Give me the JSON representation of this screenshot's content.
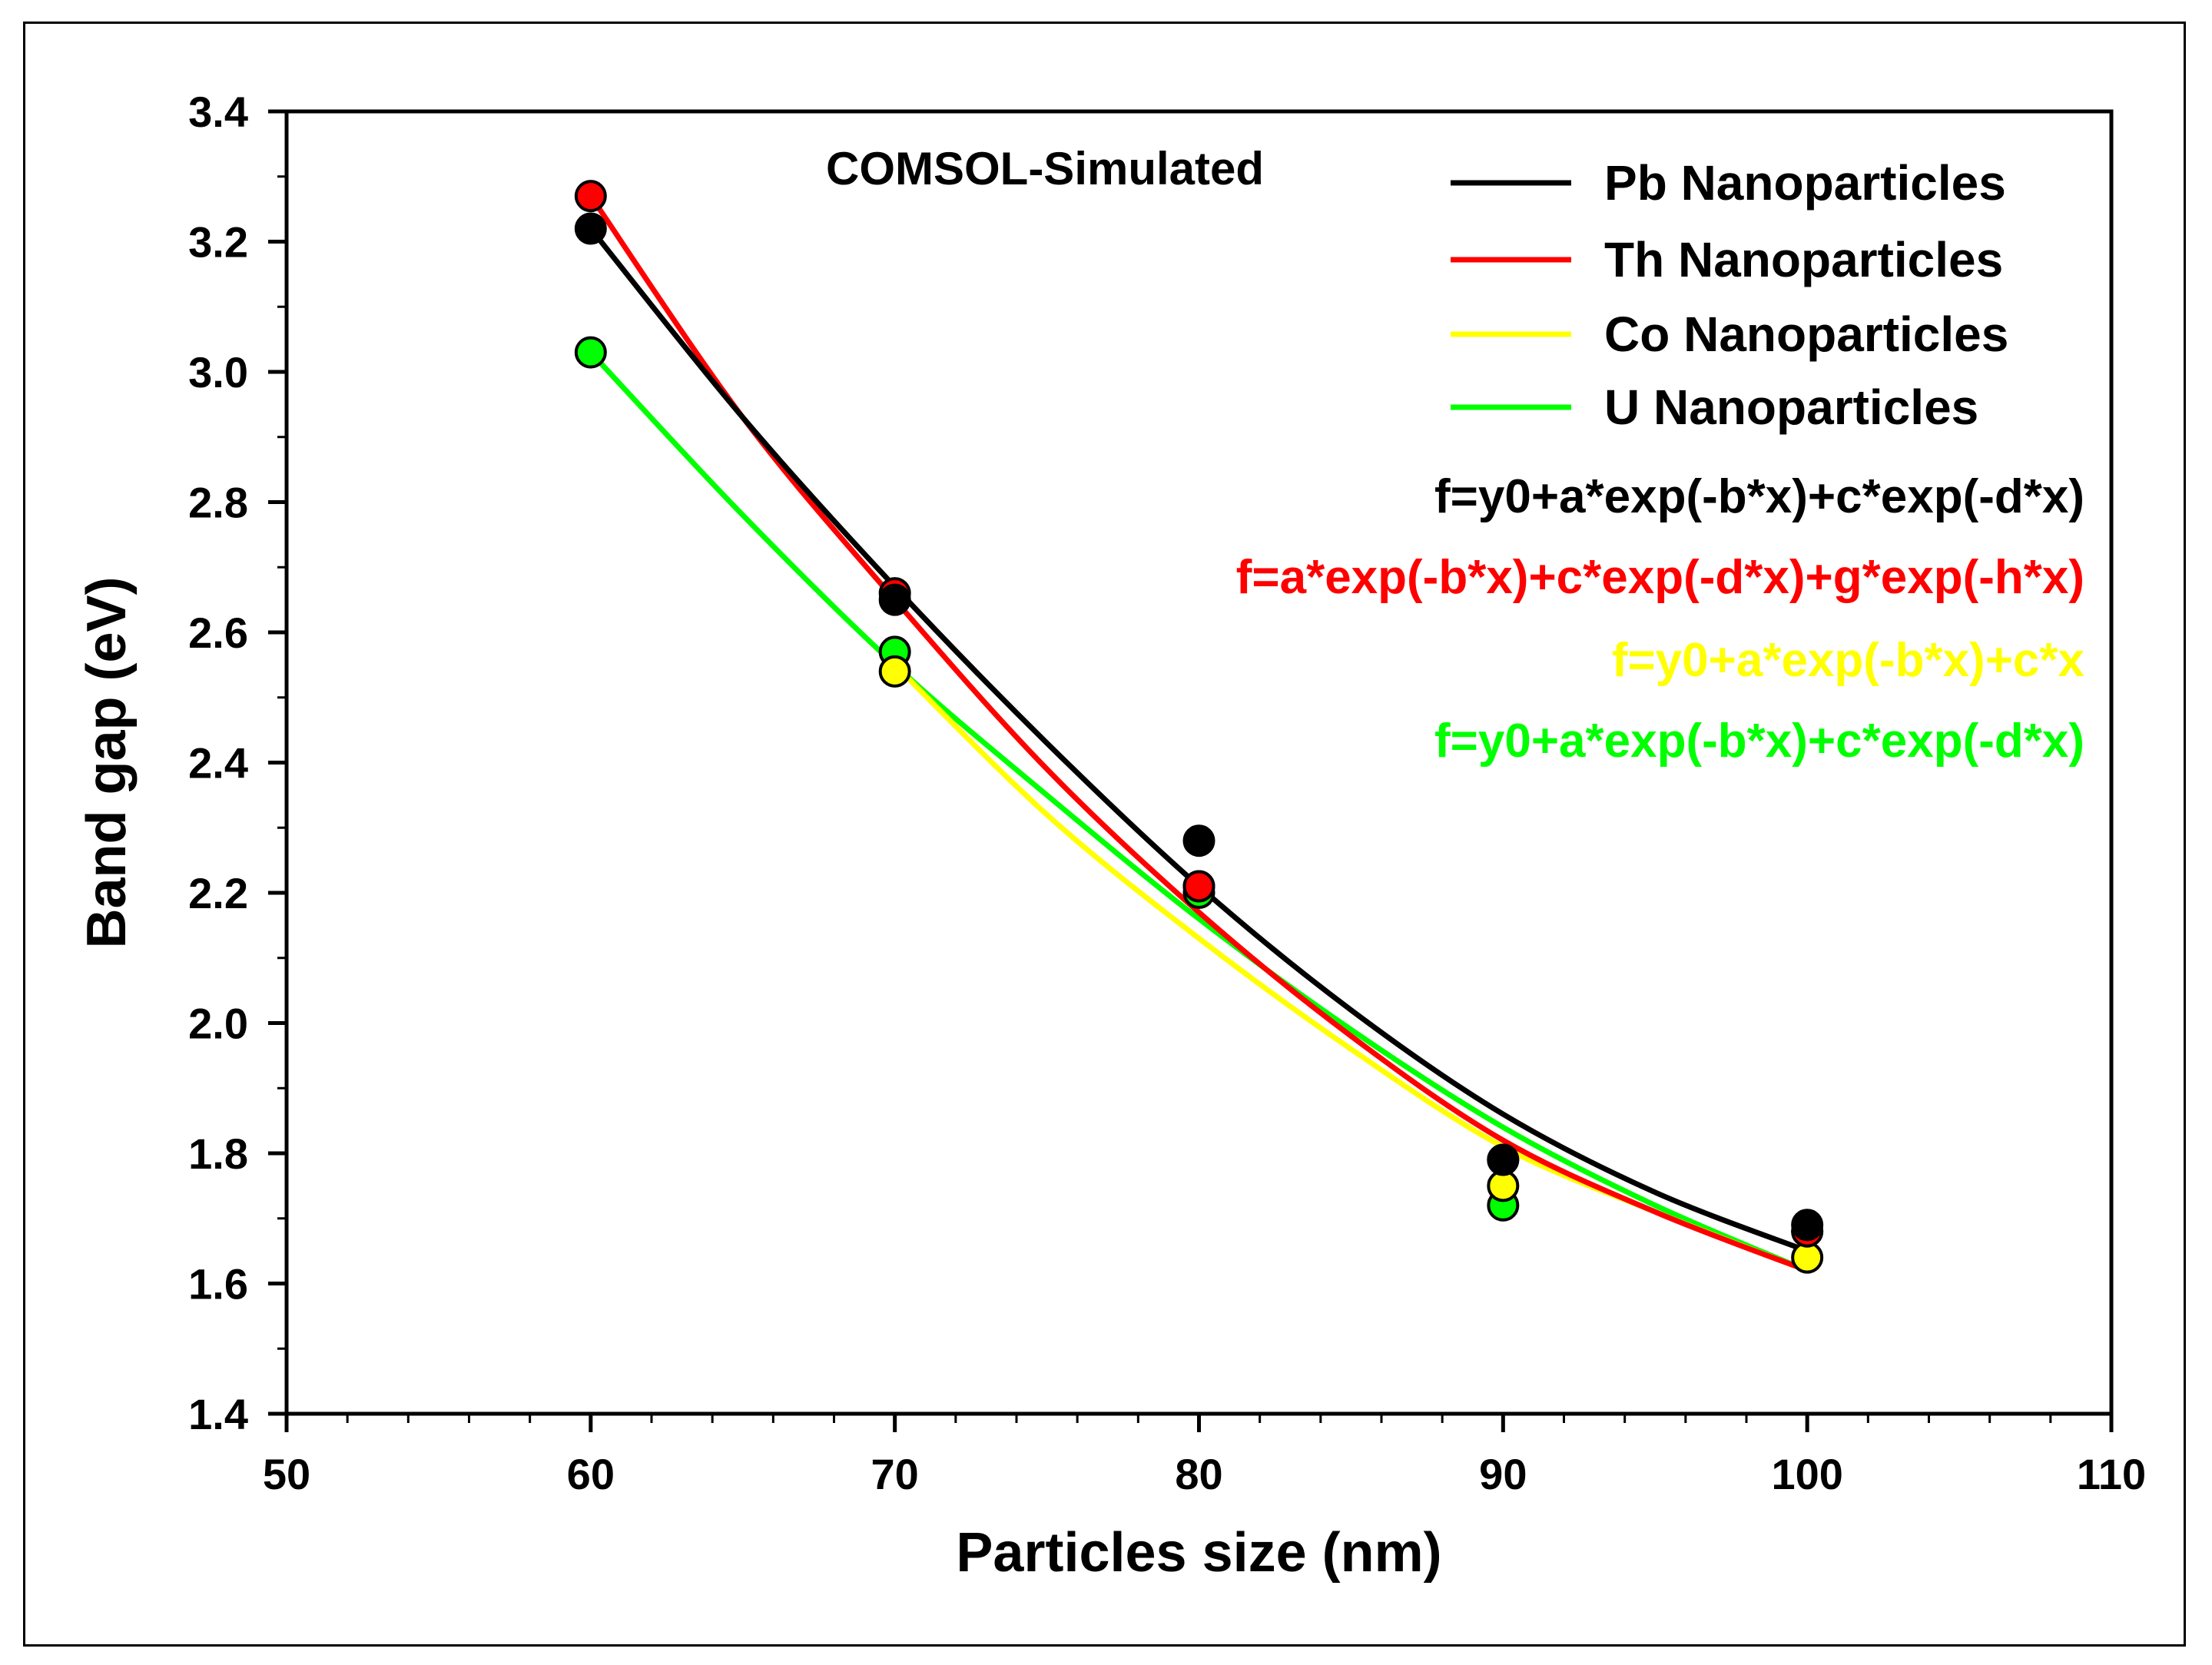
{
  "chart_data": {
    "type": "scatter",
    "title": "",
    "annotation": "COMSOL-Simulated",
    "xlabel": "Particles size (nm)",
    "ylabel": "Band gap (eV)",
    "xlim": [
      50,
      110
    ],
    "ylim": [
      1.4,
      3.4
    ],
    "xticks": [
      50,
      60,
      70,
      80,
      90,
      100,
      110
    ],
    "yticks": [
      1.4,
      1.6,
      1.8,
      2.0,
      2.2,
      2.4,
      2.6,
      2.8,
      3.0,
      3.2,
      3.4
    ],
    "ytick_labels": [
      "1.4",
      "1.6",
      "1.8",
      "2.0",
      "2.2",
      "2.4",
      "2.6",
      "2.8",
      "3.0",
      "3.2",
      "3.4"
    ],
    "grid": false,
    "legend_position": "top-right",
    "series": [
      {
        "name": "Pb Nanoparticles",
        "color": "#000000",
        "equation": "f=y0+a*exp(-b*x)+c*exp(-d*x)",
        "x": [
          60,
          70,
          80,
          90,
          100
        ],
        "y": [
          3.22,
          2.65,
          2.28,
          1.79,
          1.69
        ],
        "fit_x": [
          60,
          65,
          70,
          75,
          80,
          85,
          90,
          95,
          100
        ],
        "fit_y": [
          3.22,
          2.93,
          2.67,
          2.43,
          2.21,
          2.02,
          1.86,
          1.74,
          1.65
        ]
      },
      {
        "name": "Th Nanoparticles",
        "color": "#ff0000",
        "equation": "f=a*exp(-b*x)+c*exp(-d*x)+g*exp(-h*x)",
        "x": [
          60,
          70,
          80,
          90,
          100
        ],
        "y": [
          3.27,
          2.66,
          2.21,
          1.79,
          1.68
        ],
        "fit_x": [
          60,
          65,
          70,
          75,
          80,
          85,
          90,
          95,
          100
        ],
        "fit_y": [
          3.27,
          2.93,
          2.65,
          2.39,
          2.17,
          1.98,
          1.82,
          1.71,
          1.62
        ]
      },
      {
        "name": "Co Nanoparticles",
        "color": "#ffff00",
        "equation": "f=y0+a*exp(-b*x)+c*x",
        "x": [
          70,
          80,
          90,
          100
        ],
        "y": [
          2.54,
          2.21,
          1.75,
          1.64
        ],
        "fit_x": [
          70,
          75,
          80,
          85,
          90,
          95,
          100
        ],
        "fit_y": [
          2.55,
          2.32,
          2.13,
          1.96,
          1.81,
          1.71,
          1.62
        ]
      },
      {
        "name": "U Nanoparticles",
        "color": "#00ff00",
        "equation": "f=y0+a*exp(-b*x)+c*exp(-d*x)",
        "x": [
          60,
          70,
          80,
          90,
          100
        ],
        "y": [
          3.03,
          2.57,
          2.2,
          1.72,
          1.68
        ],
        "fit_x": [
          60,
          65,
          70,
          75,
          80,
          85,
          90,
          95,
          100
        ],
        "fit_y": [
          3.03,
          2.78,
          2.55,
          2.35,
          2.16,
          1.99,
          1.84,
          1.72,
          1.62
        ]
      }
    ]
  }
}
